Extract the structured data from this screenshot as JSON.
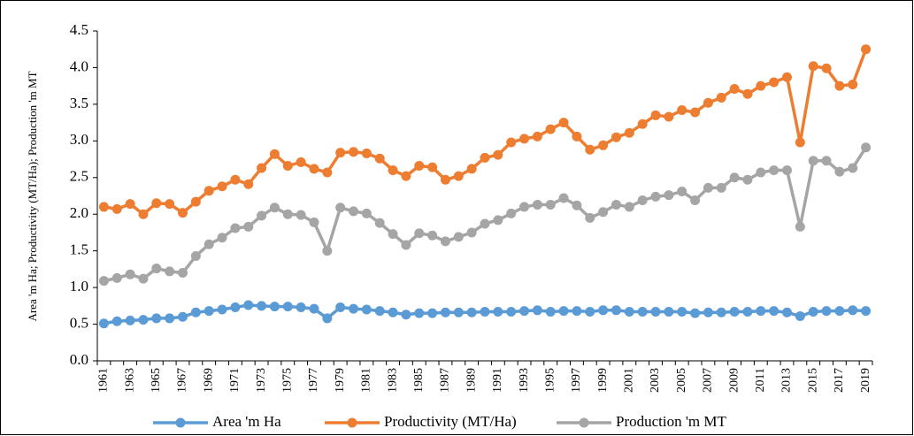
{
  "chart_data": {
    "type": "line",
    "ylabel": "Area 'm Ha; Productivity (MT/Ha); Production 'm MT",
    "categories": [
      "1961",
      null,
      "1963",
      null,
      "1965",
      null,
      "1967",
      null,
      "1969",
      null,
      "1971",
      null,
      "1973",
      null,
      "1975",
      null,
      "1977",
      null,
      "1979",
      null,
      "1981",
      null,
      "1983",
      null,
      "1985",
      null,
      "1987",
      null,
      "1989",
      null,
      "1991",
      null,
      "1993",
      null,
      "1995",
      null,
      "1997",
      null,
      "1999",
      null,
      "2001",
      null,
      "2003",
      null,
      "2005",
      null,
      "2007",
      null,
      "2009",
      null,
      "2011",
      null,
      "2013",
      null,
      "2015",
      null,
      "2017",
      null,
      "2019"
    ],
    "series": [
      {
        "name": "Area 'm Ha",
        "color": "#5b9bd5",
        "values": [
          0.51,
          0.54,
          0.55,
          0.56,
          0.58,
          0.58,
          0.6,
          0.66,
          0.68,
          0.7,
          0.73,
          0.76,
          0.75,
          0.74,
          0.74,
          0.73,
          0.71,
          0.58,
          0.73,
          0.71,
          0.7,
          0.68,
          0.66,
          0.63,
          0.65,
          0.65,
          0.66,
          0.66,
          0.66,
          0.67,
          0.67,
          0.67,
          0.68,
          0.69,
          0.67,
          0.68,
          0.68,
          0.67,
          0.69,
          0.69,
          0.67,
          0.67,
          0.67,
          0.67,
          0.67,
          0.65,
          0.66,
          0.66,
          0.67,
          0.67,
          0.68,
          0.68,
          0.66,
          0.61,
          0.67,
          0.68,
          0.68,
          0.69,
          0.68
        ]
      },
      {
        "name": "Productivity (MT/Ha)",
        "color": "#ed7d31",
        "values": [
          2.1,
          2.07,
          2.14,
          2.0,
          2.15,
          2.14,
          2.02,
          2.17,
          2.32,
          2.38,
          2.47,
          2.41,
          2.63,
          2.82,
          2.66,
          2.71,
          2.62,
          2.57,
          2.84,
          2.85,
          2.83,
          2.76,
          2.6,
          2.52,
          2.66,
          2.64,
          2.47,
          2.52,
          2.62,
          2.77,
          2.81,
          2.98,
          3.03,
          3.06,
          3.16,
          3.25,
          3.06,
          2.88,
          2.94,
          3.05,
          3.11,
          3.23,
          3.35,
          3.33,
          3.42,
          3.39,
          3.52,
          3.59,
          3.71,
          3.64,
          3.75,
          3.8,
          3.87,
          2.98,
          4.02,
          3.99,
          3.75,
          3.77,
          4.25
        ]
      },
      {
        "name": "Production 'm MT",
        "color": "#a5a5a5",
        "values": [
          1.09,
          1.13,
          1.18,
          1.12,
          1.26,
          1.22,
          1.2,
          1.43,
          1.59,
          1.68,
          1.81,
          1.83,
          1.98,
          2.09,
          2.0,
          1.99,
          1.89,
          1.5,
          2.09,
          2.04,
          2.01,
          1.88,
          1.73,
          1.58,
          1.74,
          1.71,
          1.63,
          1.69,
          1.75,
          1.87,
          1.92,
          2.01,
          2.1,
          2.13,
          2.13,
          2.22,
          2.12,
          1.95,
          2.03,
          2.13,
          2.1,
          2.19,
          2.24,
          2.26,
          2.31,
          2.19,
          2.36,
          2.36,
          2.5,
          2.47,
          2.57,
          2.6,
          2.6,
          1.83,
          2.73,
          2.73,
          2.58,
          2.63,
          2.91
        ]
      }
    ],
    "ylim": [
      0,
      4.5
    ],
    "yticks": [
      {
        "value": 0,
        "label": "0.0"
      },
      0.5,
      {
        "value": 1,
        "label": "1.0"
      },
      1.5,
      {
        "value": 2,
        "label": "2.0"
      },
      2.5,
      {
        "value": 3,
        "label": "3.0"
      },
      3.5,
      {
        "value": 4,
        "label": "4.0"
      },
      4.5
    ],
    "grid": false,
    "legend": "bottom"
  }
}
